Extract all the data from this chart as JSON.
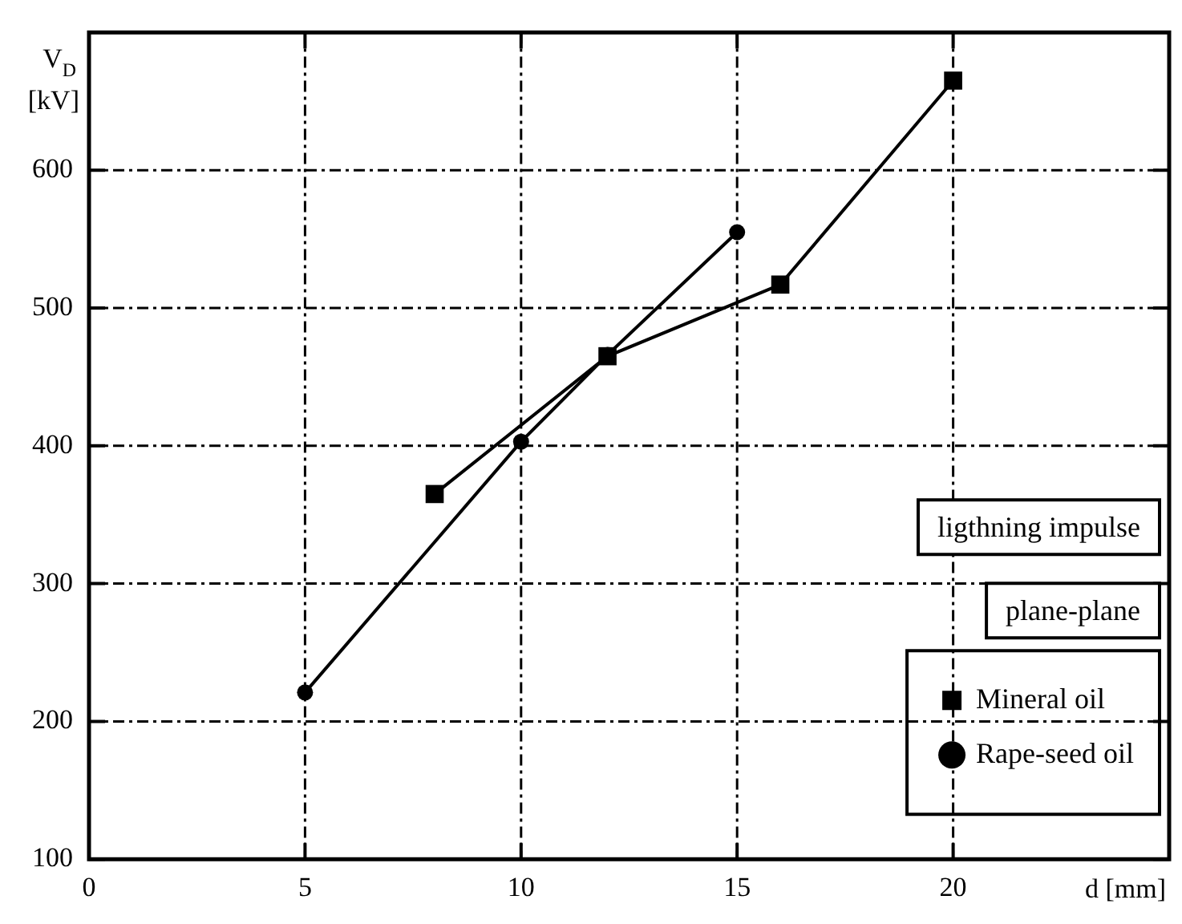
{
  "chart_data": {
    "type": "line",
    "xlabel": "d [mm]",
    "ylabel": "V$_{D}$ [kV]",
    "annotations": [
      "ligthning impulse",
      "plane-plane"
    ],
    "series": [
      {
        "name": "Rape-seed oil",
        "color": "#000000",
        "marker": "circle",
        "x": [
          5,
          10,
          12,
          15
        ],
        "values": [
          221,
          403,
          466,
          555
        ]
      },
      {
        "name": "Mineral oil",
        "color": "#000000",
        "marker": "square",
        "x": [
          8,
          12,
          16,
          20
        ],
        "values": [
          365,
          465,
          517,
          665
        ]
      }
    ],
    "xlim": [
      0,
      25
    ],
    "xticks": [
      0,
      5,
      10,
      15,
      20,
      {
        "value": 25,
        "label": null
      }
    ],
    "ylim": [
      100,
      700
    ],
    "yticks": [
      100,
      200,
      300,
      400,
      500,
      600,
      {
        "value": 700,
        "label": null
      }
    ],
    "grid": true,
    "legend": "bottom right",
    "line_style": "solid"
  }
}
